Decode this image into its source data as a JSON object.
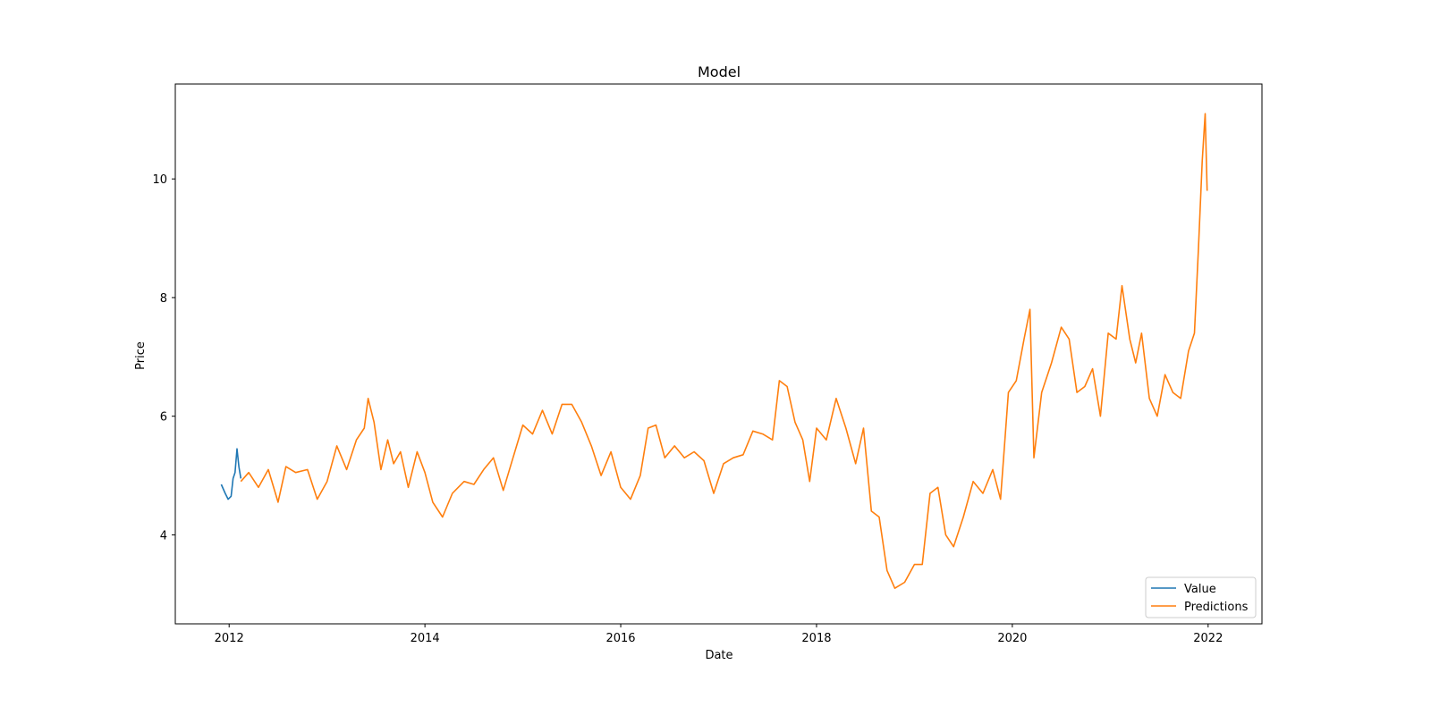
{
  "chart_data": {
    "type": "line",
    "title": "Model",
    "xlabel": "Date",
    "ylabel": "Price",
    "xlim": [
      2011.45,
      2022.55
    ],
    "ylim": [
      2.5,
      11.6
    ],
    "x_ticks": [
      2012,
      2014,
      2016,
      2018,
      2020,
      2022
    ],
    "x_tick_labels": [
      "2012",
      "2014",
      "2016",
      "2018",
      "2020",
      "2022"
    ],
    "y_ticks": [
      4,
      6,
      8,
      10
    ],
    "y_tick_labels": [
      "4",
      "6",
      "8",
      "10"
    ],
    "grid": false,
    "legend": {
      "position": "lower-right",
      "entries": [
        "Value",
        "Predictions"
      ]
    },
    "series": [
      {
        "name": "Value",
        "color": "#1f77b4",
        "x": [
          2011.92,
          2011.96,
          2011.99,
          2012.02,
          2012.04,
          2012.06,
          2012.08,
          2012.1,
          2012.12
        ],
        "y": [
          4.85,
          4.7,
          4.6,
          4.65,
          4.95,
          5.05,
          5.45,
          5.15,
          4.95
        ]
      },
      {
        "name": "Predictions",
        "color": "#ff7f0e",
        "x": [
          2012.12,
          2012.2,
          2012.3,
          2012.4,
          2012.5,
          2012.58,
          2012.68,
          2012.8,
          2012.9,
          2013.0,
          2013.1,
          2013.2,
          2013.3,
          2013.38,
          2013.42,
          2013.48,
          2013.55,
          2013.62,
          2013.68,
          2013.75,
          2013.83,
          2013.92,
          2014.0,
          2014.08,
          2014.18,
          2014.28,
          2014.4,
          2014.5,
          2014.6,
          2014.7,
          2014.8,
          2014.9,
          2015.0,
          2015.1,
          2015.2,
          2015.3,
          2015.4,
          2015.5,
          2015.6,
          2015.7,
          2015.8,
          2015.9,
          2016.0,
          2016.1,
          2016.2,
          2016.28,
          2016.36,
          2016.45,
          2016.55,
          2016.65,
          2016.75,
          2016.85,
          2016.95,
          2017.05,
          2017.15,
          2017.25,
          2017.35,
          2017.45,
          2017.55,
          2017.62,
          2017.7,
          2017.78,
          2017.86,
          2017.93,
          2018.0,
          2018.1,
          2018.2,
          2018.3,
          2018.4,
          2018.48,
          2018.56,
          2018.64,
          2018.72,
          2018.8,
          2018.9,
          2019.0,
          2019.08,
          2019.16,
          2019.24,
          2019.32,
          2019.4,
          2019.5,
          2019.6,
          2019.7,
          2019.8,
          2019.88,
          2019.96,
          2020.04,
          2020.12,
          2020.18,
          2020.22,
          2020.3,
          2020.4,
          2020.5,
          2020.58,
          2020.66,
          2020.74,
          2020.82,
          2020.9,
          2020.98,
          2021.06,
          2021.12,
          2021.2,
          2021.26,
          2021.32,
          2021.4,
          2021.48,
          2021.56,
          2021.64,
          2021.72,
          2021.8,
          2021.86,
          2021.9,
          2021.94,
          2021.97,
          2021.99
        ],
        "y": [
          4.9,
          5.05,
          4.8,
          5.1,
          4.55,
          5.15,
          5.05,
          5.1,
          4.6,
          4.9,
          5.5,
          5.1,
          5.6,
          5.8,
          6.3,
          5.9,
          5.1,
          5.6,
          5.2,
          5.4,
          4.8,
          5.4,
          5.05,
          4.55,
          4.3,
          4.7,
          4.9,
          4.85,
          5.1,
          5.3,
          4.75,
          5.3,
          5.85,
          5.7,
          6.1,
          5.7,
          6.2,
          6.2,
          5.9,
          5.5,
          5.0,
          5.4,
          4.8,
          4.6,
          5.0,
          5.8,
          5.85,
          5.3,
          5.5,
          5.3,
          5.4,
          5.25,
          4.7,
          5.2,
          5.3,
          5.35,
          5.75,
          5.7,
          5.6,
          6.6,
          6.5,
          5.9,
          5.6,
          4.9,
          5.8,
          5.6,
          6.3,
          5.8,
          5.2,
          5.8,
          4.4,
          4.3,
          3.4,
          3.1,
          3.2,
          3.5,
          3.5,
          4.7,
          4.8,
          4.0,
          3.8,
          4.3,
          4.9,
          4.7,
          5.1,
          4.6,
          6.4,
          6.6,
          7.3,
          7.8,
          5.3,
          6.4,
          6.9,
          7.5,
          7.3,
          6.4,
          6.5,
          6.8,
          6.0,
          7.4,
          7.3,
          8.2,
          7.3,
          6.9,
          7.4,
          6.3,
          6.0,
          6.7,
          6.4,
          6.3,
          7.1,
          7.4,
          8.8,
          10.3,
          11.1,
          9.8
        ]
      }
    ]
  }
}
